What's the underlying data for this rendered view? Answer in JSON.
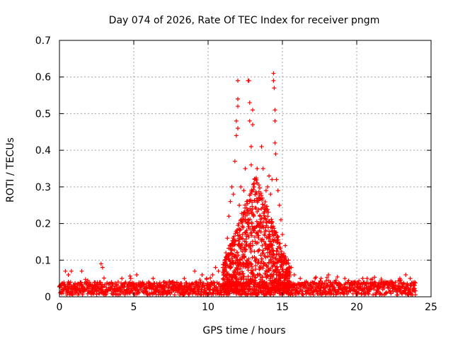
{
  "chart_data": {
    "type": "scatter",
    "title": "Day 074 of 2026, Rate Of TEC Index for receiver pngm",
    "xlabel": "GPS time / hours",
    "ylabel": "ROTI / TECUs",
    "xlim": [
      0,
      25
    ],
    "ylim": [
      0,
      0.7
    ],
    "xticks": [
      "0",
      "5",
      "10",
      "15",
      "20",
      "25"
    ],
    "yticks": [
      "0",
      "0.1",
      "0.2",
      "0.3",
      "0.4",
      "0.5",
      "0.6",
      "0.7"
    ],
    "grid": true,
    "marker": "plus",
    "color": "#ff0000",
    "series": [
      {
        "points": [
          [
            0.2,
            0.02
          ],
          [
            0.4,
            0.07
          ],
          [
            0.6,
            0.06
          ],
          [
            0.8,
            0.07
          ],
          [
            1.0,
            0.03
          ],
          [
            1.5,
            0.07
          ],
          [
            2.0,
            0.04
          ],
          [
            2.8,
            0.09
          ],
          [
            2.9,
            0.08
          ],
          [
            3.5,
            0.04
          ],
          [
            4.2,
            0.05
          ],
          [
            4.8,
            0.05
          ],
          [
            5.2,
            0.06
          ],
          [
            5.6,
            0.04
          ],
          [
            6.3,
            0.05
          ],
          [
            7.0,
            0.04
          ],
          [
            7.6,
            0.04
          ],
          [
            8.4,
            0.05
          ],
          [
            9.1,
            0.07
          ],
          [
            9.6,
            0.06
          ],
          [
            9.9,
            0.05
          ],
          [
            10.3,
            0.06
          ],
          [
            10.5,
            0.08
          ],
          [
            10.7,
            0.07
          ],
          [
            11.0,
            0.08
          ],
          [
            11.2,
            0.12
          ],
          [
            11.3,
            0.16
          ],
          [
            11.4,
            0.22
          ],
          [
            11.5,
            0.26
          ],
          [
            11.6,
            0.3
          ],
          [
            11.7,
            0.28
          ],
          [
            11.8,
            0.37
          ],
          [
            11.9,
            0.44
          ],
          [
            11.9,
            0.48
          ],
          [
            12.0,
            0.52
          ],
          [
            12.0,
            0.54
          ],
          [
            12.0,
            0.59
          ],
          [
            12.0,
            0.46
          ],
          [
            12.1,
            0.25
          ],
          [
            12.2,
            0.3
          ],
          [
            12.3,
            0.21
          ],
          [
            12.4,
            0.29
          ],
          [
            12.5,
            0.35
          ],
          [
            12.6,
            0.26
          ],
          [
            12.7,
            0.59
          ],
          [
            12.75,
            0.59
          ],
          [
            12.8,
            0.53
          ],
          [
            12.8,
            0.48
          ],
          [
            12.9,
            0.41
          ],
          [
            12.9,
            0.36
          ],
          [
            13.0,
            0.51
          ],
          [
            13.0,
            0.47
          ],
          [
            13.1,
            0.3
          ],
          [
            13.2,
            0.32
          ],
          [
            13.3,
            0.35
          ],
          [
            13.4,
            0.27
          ],
          [
            13.5,
            0.22
          ],
          [
            13.6,
            0.41
          ],
          [
            13.7,
            0.35
          ],
          [
            13.8,
            0.25
          ],
          [
            13.9,
            0.29
          ],
          [
            14.0,
            0.3
          ],
          [
            14.1,
            0.33
          ],
          [
            14.2,
            0.28
          ],
          [
            14.3,
            0.32
          ],
          [
            14.4,
            0.61
          ],
          [
            14.4,
            0.59
          ],
          [
            14.45,
            0.57
          ],
          [
            14.5,
            0.51
          ],
          [
            14.5,
            0.48
          ],
          [
            14.5,
            0.42
          ],
          [
            14.55,
            0.39
          ],
          [
            14.6,
            0.32
          ],
          [
            14.7,
            0.29
          ],
          [
            14.8,
            0.25
          ],
          [
            14.9,
            0.21
          ],
          [
            15.0,
            0.17
          ],
          [
            15.2,
            0.14
          ],
          [
            15.4,
            0.1
          ],
          [
            15.6,
            0.08
          ],
          [
            15.8,
            0.06
          ],
          [
            16.2,
            0.05
          ],
          [
            16.6,
            0.04
          ],
          [
            17.2,
            0.05
          ],
          [
            17.6,
            0.05
          ],
          [
            18.1,
            0.06
          ],
          [
            18.6,
            0.04
          ],
          [
            19.2,
            0.05
          ],
          [
            19.8,
            0.04
          ],
          [
            20.4,
            0.05
          ],
          [
            20.7,
            0.05
          ],
          [
            21.2,
            0.04
          ],
          [
            21.8,
            0.04
          ],
          [
            22.4,
            0.04
          ],
          [
            22.9,
            0.05
          ],
          [
            23.3,
            0.06
          ],
          [
            23.6,
            0.05
          ],
          [
            23.9,
            0.04
          ]
        ]
      }
    ]
  }
}
